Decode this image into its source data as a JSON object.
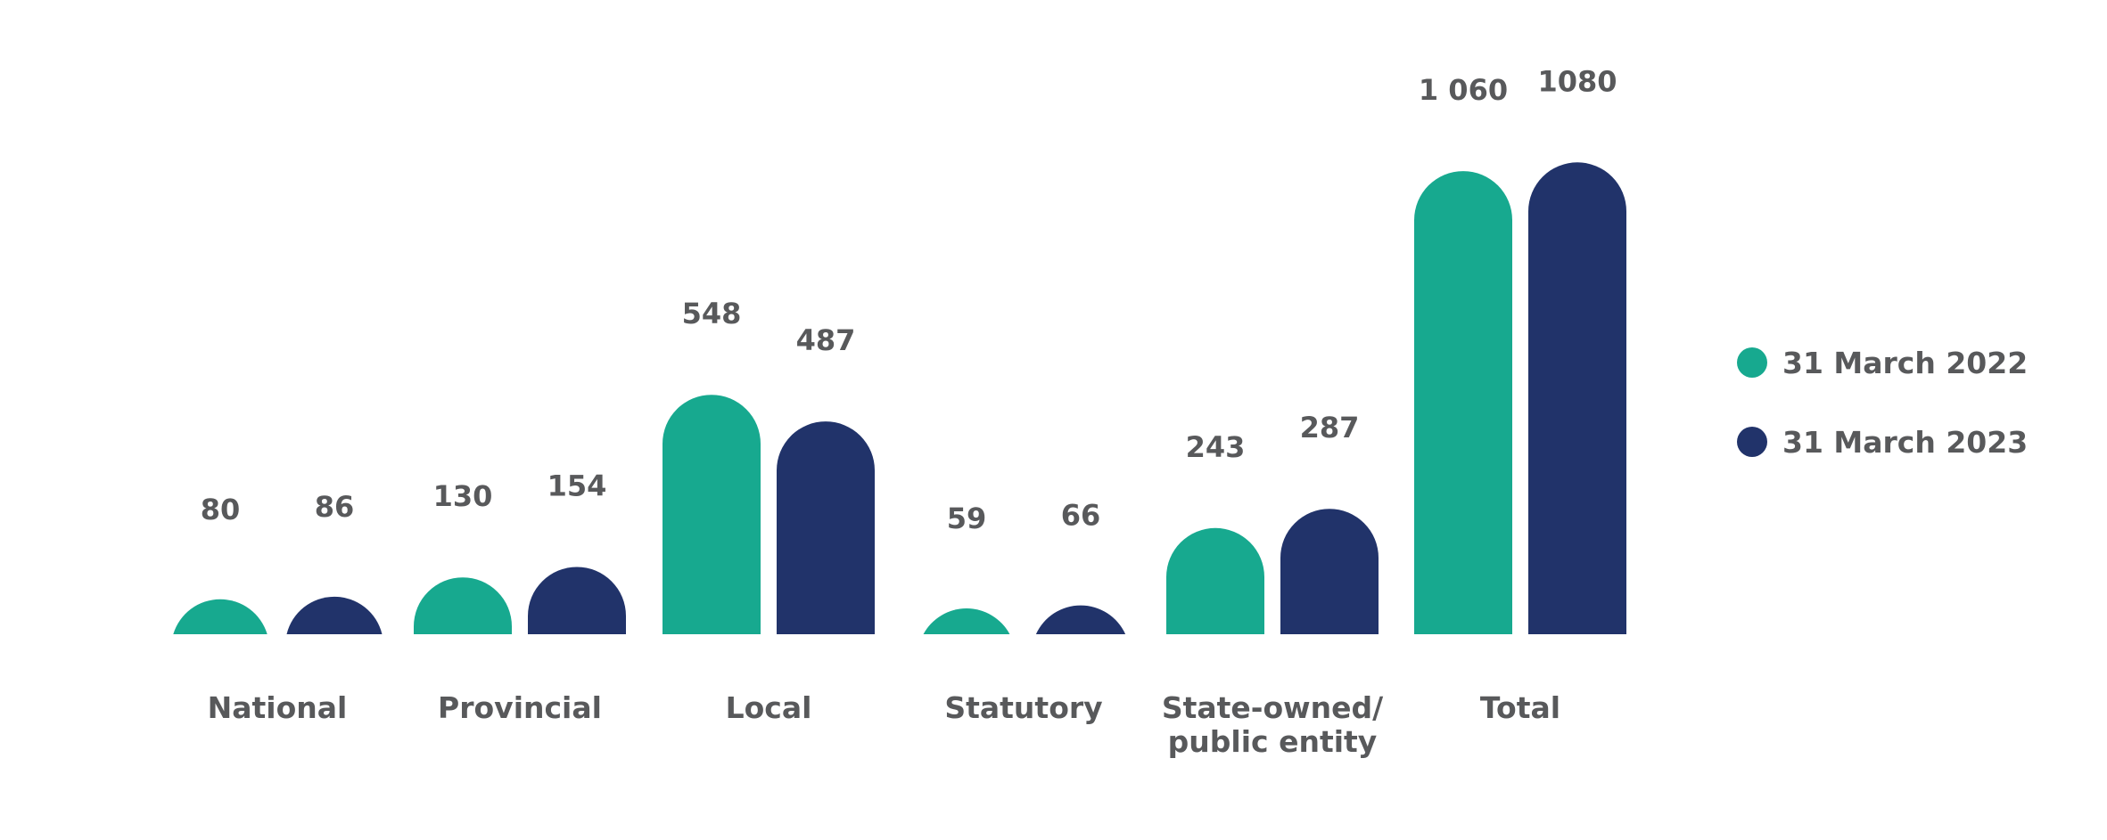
{
  "chart_data": {
    "type": "bar",
    "categories": [
      [
        "National"
      ],
      [
        "Provincial"
      ],
      [
        "Local"
      ],
      [
        "Statutory"
      ],
      [
        "State-owned/",
        "public entity"
      ],
      [
        "Total"
      ]
    ],
    "series": [
      {
        "name": "31 March 2022",
        "color": "#17a98f",
        "values": [
          80,
          130,
          548,
          59,
          243,
          1060
        ],
        "labels": [
          "80",
          "130",
          "548",
          "59",
          "243",
          "1 060"
        ]
      },
      {
        "name": "31 March 2023",
        "color": "#21336a",
        "values": [
          86,
          154,
          487,
          66,
          287,
          1080
        ],
        "labels": [
          "86",
          "154",
          "487",
          "66",
          "287",
          "1080"
        ]
      }
    ],
    "legend_position": "right",
    "grid": false,
    "bar_shape": "rounded-top"
  }
}
